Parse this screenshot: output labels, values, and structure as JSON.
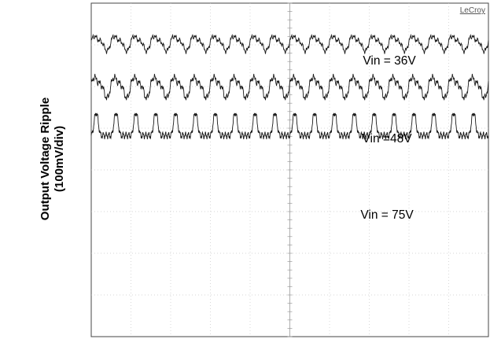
{
  "chart_data": {
    "type": "line",
    "title": "",
    "brand": "LeCroy",
    "ylabel_line1": "Output Voltage Ripple",
    "ylabel_line2": "(100mV/div)",
    "xlabel": "",
    "grid": true,
    "grid_divisions": {
      "x": 10,
      "y": 8
    },
    "vertical_scale_mV_per_div": 100,
    "series": [
      {
        "name": "Vin = 36V",
        "vin_V": 36,
        "ripple_pk_pk_div": 0.5,
        "ripple_pk_pk_mV": 50,
        "cycles": 20
      },
      {
        "name": "Vin =48V",
        "vin_V": 48,
        "ripple_pk_pk_div": 0.7,
        "ripple_pk_pk_mV": 70,
        "cycles": 20
      },
      {
        "name": "Vin = 75V",
        "vin_V": 75,
        "ripple_pk_pk_div": 1.0,
        "ripple_pk_pk_mV": 100,
        "cycles": 20
      }
    ]
  }
}
